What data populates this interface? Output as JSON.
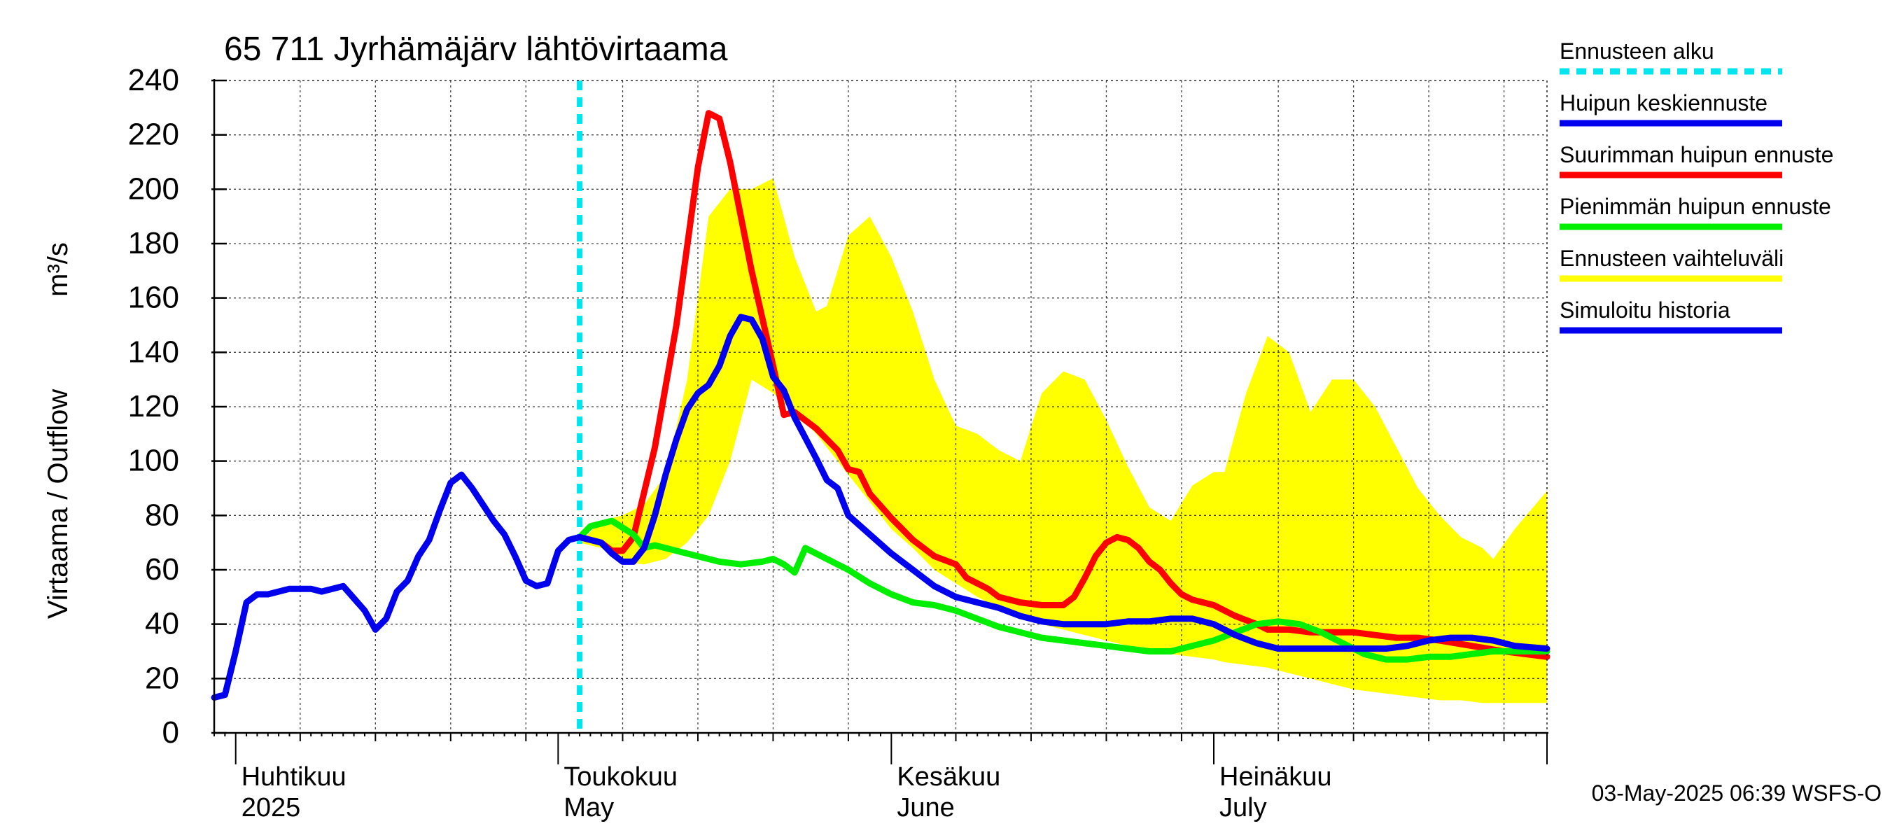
{
  "chart_data": {
    "type": "line",
    "title": "65 711 Jyrhämäjärv lähtövirtaama",
    "ylabel": "Virtaama / Outflow",
    "yunit": "m³/s",
    "ylim": [
      0,
      240
    ],
    "yticks": [
      0,
      20,
      40,
      60,
      80,
      100,
      120,
      140,
      160,
      180,
      200,
      220,
      240
    ],
    "grid": true,
    "xlim": [
      "2025-03-30",
      "2025-08-01"
    ],
    "month_labels": [
      {
        "date": "2025-04-01",
        "fi": "Huhtikuu",
        "en": "2025"
      },
      {
        "date": "2025-05-01",
        "fi": "Toukokuu",
        "en": "May"
      },
      {
        "date": "2025-06-01",
        "fi": "Kesäkuu",
        "en": "June"
      },
      {
        "date": "2025-07-01",
        "fi": "Heinäkuu",
        "en": "July"
      }
    ],
    "forecast_start": "2025-05-03",
    "legend_placement": "right",
    "legend": [
      {
        "label": "Ennusteen alku",
        "color": "#00e5ee",
        "style": "dashed"
      },
      {
        "label": "Huipun keskiennuste",
        "color": "#0000ee",
        "style": "solid"
      },
      {
        "label": "Suurimman huipun ennuste",
        "color": "#ff0000",
        "style": "solid"
      },
      {
        "label": "Pienimmän huipun ennuste",
        "color": "#00ee00",
        "style": "solid"
      },
      {
        "label": "Ennusteen vaihteluväli",
        "color": "#ffff00",
        "style": "solid"
      },
      {
        "label": "Simuloitu historia",
        "color": "#0000ee",
        "style": "solid"
      }
    ],
    "band": {
      "name": "Ennusteen vaihteluväli",
      "color": "#ffff00",
      "points": [
        [
          "2025-05-02",
          53,
          53
        ],
        [
          "2025-05-03",
          70,
          70
        ],
        [
          "2025-05-05",
          68,
          78
        ],
        [
          "2025-05-07",
          63,
          80
        ],
        [
          "2025-05-09",
          62,
          84
        ],
        [
          "2025-05-11",
          64,
          95
        ],
        [
          "2025-05-13",
          70,
          130
        ],
        [
          "2025-05-15",
          80,
          190
        ],
        [
          "2025-05-17",
          100,
          200
        ],
        [
          "2025-05-19",
          130,
          200
        ],
        [
          "2025-05-21",
          125,
          204
        ],
        [
          "2025-05-23",
          118,
          175
        ],
        [
          "2025-05-25",
          110,
          155
        ],
        [
          "2025-05-26",
          105,
          157
        ],
        [
          "2025-05-28",
          95,
          183
        ],
        [
          "2025-05-30",
          85,
          190
        ],
        [
          "2025-06-01",
          75,
          175
        ],
        [
          "2025-06-03",
          68,
          155
        ],
        [
          "2025-06-05",
          60,
          130
        ],
        [
          "2025-06-07",
          55,
          113
        ],
        [
          "2025-06-09",
          50,
          110
        ],
        [
          "2025-06-11",
          46,
          104
        ],
        [
          "2025-06-13",
          42,
          100
        ],
        [
          "2025-06-15",
          40,
          125
        ],
        [
          "2025-06-17",
          38,
          133
        ],
        [
          "2025-06-19",
          36,
          130
        ],
        [
          "2025-06-21",
          34,
          115
        ],
        [
          "2025-06-23",
          32,
          98
        ],
        [
          "2025-06-25",
          30,
          83
        ],
        [
          "2025-06-27",
          29,
          78
        ],
        [
          "2025-06-29",
          28,
          91
        ],
        [
          "2025-07-01",
          27,
          96
        ],
        [
          "2025-07-02",
          26,
          96
        ],
        [
          "2025-07-04",
          25,
          125
        ],
        [
          "2025-07-06",
          24,
          146
        ],
        [
          "2025-07-08",
          22,
          140
        ],
        [
          "2025-07-10",
          20,
          118
        ],
        [
          "2025-07-12",
          18,
          130
        ],
        [
          "2025-07-14",
          16,
          130
        ],
        [
          "2025-07-16",
          15,
          120
        ],
        [
          "2025-07-18",
          14,
          105
        ],
        [
          "2025-07-20",
          13,
          90
        ],
        [
          "2025-07-22",
          12,
          80
        ],
        [
          "2025-07-24",
          12,
          72
        ],
        [
          "2025-07-26",
          11,
          68
        ],
        [
          "2025-07-27",
          11,
          64
        ],
        [
          "2025-07-29",
          11,
          75
        ],
        [
          "2025-08-01",
          11,
          89
        ]
      ]
    },
    "series": [
      {
        "name": "Simuloitu historia",
        "color": "#0000ee",
        "points": [
          [
            "2025-03-30",
            13
          ],
          [
            "2025-03-31",
            14
          ],
          [
            "2025-04-01",
            30
          ],
          [
            "2025-04-02",
            48
          ],
          [
            "2025-04-03",
            51
          ],
          [
            "2025-04-04",
            51
          ],
          [
            "2025-04-06",
            53
          ],
          [
            "2025-04-08",
            53
          ],
          [
            "2025-04-09",
            52
          ],
          [
            "2025-04-11",
            54
          ],
          [
            "2025-04-13",
            45
          ],
          [
            "2025-04-14",
            38
          ],
          [
            "2025-04-15",
            42
          ],
          [
            "2025-04-16",
            52
          ],
          [
            "2025-04-17",
            56
          ],
          [
            "2025-04-18",
            65
          ],
          [
            "2025-04-19",
            71
          ],
          [
            "2025-04-20",
            82
          ],
          [
            "2025-04-21",
            92
          ],
          [
            "2025-04-22",
            95
          ],
          [
            "2025-04-23",
            90
          ],
          [
            "2025-04-25",
            78
          ],
          [
            "2025-04-26",
            73
          ],
          [
            "2025-04-27",
            65
          ],
          [
            "2025-04-28",
            56
          ],
          [
            "2025-04-29",
            54
          ],
          [
            "2025-04-30",
            55
          ],
          [
            "2025-05-01",
            67
          ],
          [
            "2025-05-02",
            71
          ],
          [
            "2025-05-03",
            72
          ]
        ]
      },
      {
        "name": "Suurimman huipun ennuste",
        "color": "#ff0000",
        "points": [
          [
            "2025-05-03",
            72
          ],
          [
            "2025-05-05",
            70
          ],
          [
            "2025-05-06",
            67
          ],
          [
            "2025-05-07",
            67
          ],
          [
            "2025-05-08",
            72
          ],
          [
            "2025-05-10",
            105
          ],
          [
            "2025-05-12",
            150
          ],
          [
            "2025-05-14",
            208
          ],
          [
            "2025-05-15",
            228
          ],
          [
            "2025-05-16",
            226
          ],
          [
            "2025-05-17",
            210
          ],
          [
            "2025-05-19",
            170
          ],
          [
            "2025-05-21",
            135
          ],
          [
            "2025-05-22",
            117
          ],
          [
            "2025-05-23",
            118
          ],
          [
            "2025-05-25",
            112
          ],
          [
            "2025-05-27",
            104
          ],
          [
            "2025-05-28",
            97
          ],
          [
            "2025-05-29",
            96
          ],
          [
            "2025-05-30",
            88
          ],
          [
            "2025-06-01",
            79
          ],
          [
            "2025-06-03",
            71
          ],
          [
            "2025-06-05",
            65
          ],
          [
            "2025-06-07",
            62
          ],
          [
            "2025-06-08",
            57
          ],
          [
            "2025-06-10",
            53
          ],
          [
            "2025-06-11",
            50
          ],
          [
            "2025-06-13",
            48
          ],
          [
            "2025-06-15",
            47
          ],
          [
            "2025-06-17",
            47
          ],
          [
            "2025-06-18",
            50
          ],
          [
            "2025-06-19",
            57
          ],
          [
            "2025-06-20",
            65
          ],
          [
            "2025-06-21",
            70
          ],
          [
            "2025-06-22",
            72
          ],
          [
            "2025-06-23",
            71
          ],
          [
            "2025-06-24",
            68
          ],
          [
            "2025-06-25",
            63
          ],
          [
            "2025-06-26",
            60
          ],
          [
            "2025-06-27",
            55
          ],
          [
            "2025-06-28",
            51
          ],
          [
            "2025-06-29",
            49
          ],
          [
            "2025-07-01",
            47
          ],
          [
            "2025-07-03",
            43
          ],
          [
            "2025-07-05",
            40
          ],
          [
            "2025-07-06",
            38
          ],
          [
            "2025-07-08",
            38
          ],
          [
            "2025-07-10",
            37
          ],
          [
            "2025-07-12",
            37
          ],
          [
            "2025-07-14",
            37
          ],
          [
            "2025-07-16",
            36
          ],
          [
            "2025-07-18",
            35
          ],
          [
            "2025-07-20",
            35
          ],
          [
            "2025-07-22",
            34
          ],
          [
            "2025-07-25",
            32
          ],
          [
            "2025-07-28",
            30
          ],
          [
            "2025-08-01",
            28
          ]
        ]
      },
      {
        "name": "Huipun keskiennuste",
        "color": "#0000ee",
        "points": [
          [
            "2025-05-03",
            72
          ],
          [
            "2025-05-05",
            70
          ],
          [
            "2025-05-06",
            66
          ],
          [
            "2025-05-07",
            63
          ],
          [
            "2025-05-08",
            63
          ],
          [
            "2025-05-09",
            68
          ],
          [
            "2025-05-10",
            80
          ],
          [
            "2025-05-11",
            95
          ],
          [
            "2025-05-12",
            108
          ],
          [
            "2025-05-13",
            119
          ],
          [
            "2025-05-14",
            125
          ],
          [
            "2025-05-15",
            128
          ],
          [
            "2025-05-16",
            135
          ],
          [
            "2025-05-17",
            146
          ],
          [
            "2025-05-18",
            153
          ],
          [
            "2025-05-19",
            152
          ],
          [
            "2025-05-20",
            145
          ],
          [
            "2025-05-21",
            131
          ],
          [
            "2025-05-22",
            126
          ],
          [
            "2025-05-23",
            116
          ],
          [
            "2025-05-25",
            101
          ],
          [
            "2025-05-26",
            93
          ],
          [
            "2025-05-27",
            90
          ],
          [
            "2025-05-28",
            80
          ],
          [
            "2025-05-30",
            73
          ],
          [
            "2025-06-01",
            66
          ],
          [
            "2025-06-03",
            60
          ],
          [
            "2025-06-05",
            54
          ],
          [
            "2025-06-07",
            50
          ],
          [
            "2025-06-09",
            48
          ],
          [
            "2025-06-11",
            46
          ],
          [
            "2025-06-13",
            43
          ],
          [
            "2025-06-15",
            41
          ],
          [
            "2025-06-17",
            40
          ],
          [
            "2025-06-19",
            40
          ],
          [
            "2025-06-21",
            40
          ],
          [
            "2025-06-23",
            41
          ],
          [
            "2025-06-25",
            41
          ],
          [
            "2025-06-27",
            42
          ],
          [
            "2025-06-29",
            42
          ],
          [
            "2025-07-01",
            40
          ],
          [
            "2025-07-03",
            36
          ],
          [
            "2025-07-05",
            33
          ],
          [
            "2025-07-07",
            31
          ],
          [
            "2025-07-09",
            31
          ],
          [
            "2025-07-11",
            31
          ],
          [
            "2025-07-13",
            31
          ],
          [
            "2025-07-15",
            31
          ],
          [
            "2025-07-17",
            31
          ],
          [
            "2025-07-19",
            32
          ],
          [
            "2025-07-21",
            34
          ],
          [
            "2025-07-23",
            35
          ],
          [
            "2025-07-25",
            35
          ],
          [
            "2025-07-27",
            34
          ],
          [
            "2025-07-29",
            32
          ],
          [
            "2025-08-01",
            31
          ]
        ]
      },
      {
        "name": "Pienimmän huipun ennuste",
        "color": "#00ee00",
        "points": [
          [
            "2025-05-03",
            72
          ],
          [
            "2025-05-04",
            76
          ],
          [
            "2025-05-06",
            78
          ],
          [
            "2025-05-08",
            73
          ],
          [
            "2025-05-09",
            68
          ],
          [
            "2025-05-10",
            69
          ],
          [
            "2025-05-12",
            67
          ],
          [
            "2025-05-14",
            65
          ],
          [
            "2025-05-16",
            63
          ],
          [
            "2025-05-18",
            62
          ],
          [
            "2025-05-20",
            63
          ],
          [
            "2025-05-21",
            64
          ],
          [
            "2025-05-22",
            62
          ],
          [
            "2025-05-23",
            59
          ],
          [
            "2025-05-24",
            68
          ],
          [
            "2025-05-26",
            64
          ],
          [
            "2025-05-28",
            60
          ],
          [
            "2025-05-30",
            55
          ],
          [
            "2025-06-01",
            51
          ],
          [
            "2025-06-03",
            48
          ],
          [
            "2025-06-05",
            47
          ],
          [
            "2025-06-07",
            45
          ],
          [
            "2025-06-09",
            42
          ],
          [
            "2025-06-11",
            39
          ],
          [
            "2025-06-13",
            37
          ],
          [
            "2025-06-15",
            35
          ],
          [
            "2025-06-17",
            34
          ],
          [
            "2025-06-19",
            33
          ],
          [
            "2025-06-21",
            32
          ],
          [
            "2025-06-23",
            31
          ],
          [
            "2025-06-25",
            30
          ],
          [
            "2025-06-27",
            30
          ],
          [
            "2025-06-29",
            32
          ],
          [
            "2025-07-01",
            34
          ],
          [
            "2025-07-03",
            37
          ],
          [
            "2025-07-05",
            40
          ],
          [
            "2025-07-07",
            41
          ],
          [
            "2025-07-09",
            40
          ],
          [
            "2025-07-11",
            37
          ],
          [
            "2025-07-13",
            33
          ],
          [
            "2025-07-15",
            29
          ],
          [
            "2025-07-17",
            27
          ],
          [
            "2025-07-19",
            27
          ],
          [
            "2025-07-21",
            28
          ],
          [
            "2025-07-23",
            28
          ],
          [
            "2025-07-25",
            29
          ],
          [
            "2025-07-27",
            30
          ],
          [
            "2025-07-29",
            30
          ],
          [
            "2025-08-01",
            30
          ]
        ]
      }
    ]
  },
  "footer": {
    "timestamp": "03-May-2025 06:39 WSFS-O"
  }
}
